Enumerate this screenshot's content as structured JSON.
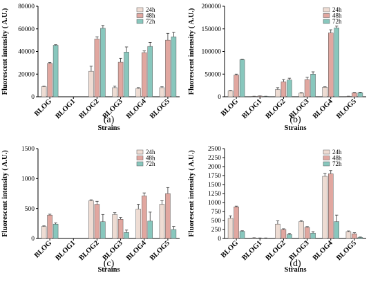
{
  "colors": {
    "24h": "#eedcd3",
    "48h": "#e1a7a0",
    "72h": "#88c7bd"
  },
  "chart_data": [
    {
      "type": "bar",
      "panel_label": "(a)",
      "xlabel": "Strains",
      "ylabel": "Fluorescent intensity ( A.U.)",
      "ylim": [
        0,
        80000
      ],
      "yticks": [
        0,
        20000,
        40000,
        60000,
        80000
      ],
      "legend_position": "top-right",
      "categories": [
        "BLOG",
        "BLOG1",
        "BLOG2",
        "BLOG3",
        "BLOG4",
        "BLOG5"
      ],
      "series": [
        {
          "name": "24h",
          "values": [
            9000,
            0,
            22500,
            8000,
            7500,
            8000
          ],
          "errors": [
            500,
            0,
            4500,
            1500,
            500,
            800
          ]
        },
        {
          "name": "48h",
          "values": [
            29500,
            0,
            51000,
            30500,
            39000,
            50000
          ],
          "errors": [
            800,
            0,
            2000,
            3500,
            1500,
            6000
          ]
        },
        {
          "name": "72h",
          "values": [
            45500,
            0,
            60500,
            39500,
            44500,
            53000
          ],
          "errors": [
            500,
            0,
            2500,
            4500,
            3500,
            4000
          ]
        }
      ]
    },
    {
      "type": "bar",
      "panel_label": "(b)",
      "xlabel": "Strains",
      "ylabel": "Fluorescent intensity ( A.U.)",
      "ylim": [
        0,
        200000
      ],
      "yticks": [
        0,
        50000,
        100000,
        150000,
        200000
      ],
      "legend_position": "top-right",
      "categories": [
        "BLOG",
        "BLOG1",
        "BLOG2",
        "BLOG3",
        "BLOG4",
        "BLOG5"
      ],
      "series": [
        {
          "name": "24h",
          "values": [
            13000,
            1000,
            16000,
            8000,
            21000,
            1000
          ],
          "errors": [
            1000,
            200,
            4000,
            1000,
            1000,
            300
          ]
        },
        {
          "name": "48h",
          "values": [
            48000,
            1500,
            33000,
            38000,
            141000,
            8500
          ],
          "errors": [
            2000,
            300,
            5000,
            5000,
            7000,
            1000
          ]
        },
        {
          "name": "72h",
          "values": [
            82000,
            1000,
            37000,
            50000,
            152000,
            9000
          ],
          "errors": [
            1000,
            200,
            4000,
            5000,
            4000,
            1000
          ]
        }
      ]
    },
    {
      "type": "bar",
      "panel_label": "(c)",
      "xlabel": "Strains",
      "ylabel": "Fluorescent intensity ( A.U.)",
      "ylim": [
        0,
        1500
      ],
      "yticks": [
        0,
        500,
        1000,
        1500
      ],
      "legend_position": "top-right",
      "categories": [
        "BLOG",
        "BLOG1",
        "BLOG2",
        "BLOG3",
        "BLOG4",
        "BLOG5"
      ],
      "series": [
        {
          "name": "24h",
          "values": [
            200,
            0,
            630,
            400,
            490,
            570
          ],
          "errors": [
            10,
            0,
            15,
            30,
            80,
            60
          ]
        },
        {
          "name": "48h",
          "values": [
            390,
            0,
            570,
            320,
            710,
            750
          ],
          "errors": [
            15,
            0,
            50,
            30,
            50,
            100
          ]
        },
        {
          "name": "72h",
          "values": [
            240,
            0,
            280,
            100,
            290,
            150
          ],
          "errors": [
            20,
            0,
            120,
            40,
            150,
            50
          ]
        }
      ]
    },
    {
      "type": "bar",
      "panel_label": "(d)",
      "xlabel": "Strains",
      "ylabel": "Fluorescent intensity ( A.U.)",
      "ylim": [
        0,
        2500
      ],
      "yticks": [
        0,
        250,
        500,
        750,
        1000,
        1250,
        1500,
        1750,
        2000,
        2250,
        2500
      ],
      "legend_position": "top-right",
      "categories": [
        "BLOG",
        "BLOG1",
        "BLOG2",
        "BLOG3",
        "BLOG4",
        "BLOG5"
      ],
      "series": [
        {
          "name": "24h",
          "values": [
            560,
            15,
            400,
            470,
            1730,
            190
          ],
          "errors": [
            70,
            5,
            90,
            25,
            80,
            20
          ]
        },
        {
          "name": "48h",
          "values": [
            880,
            10,
            250,
            310,
            1800,
            130
          ],
          "errors": [
            20,
            5,
            20,
            20,
            90,
            30
          ]
        },
        {
          "name": "72h",
          "values": [
            200,
            10,
            110,
            150,
            470,
            30
          ],
          "errors": [
            15,
            5,
            30,
            40,
            180,
            10
          ]
        }
      ]
    }
  ]
}
